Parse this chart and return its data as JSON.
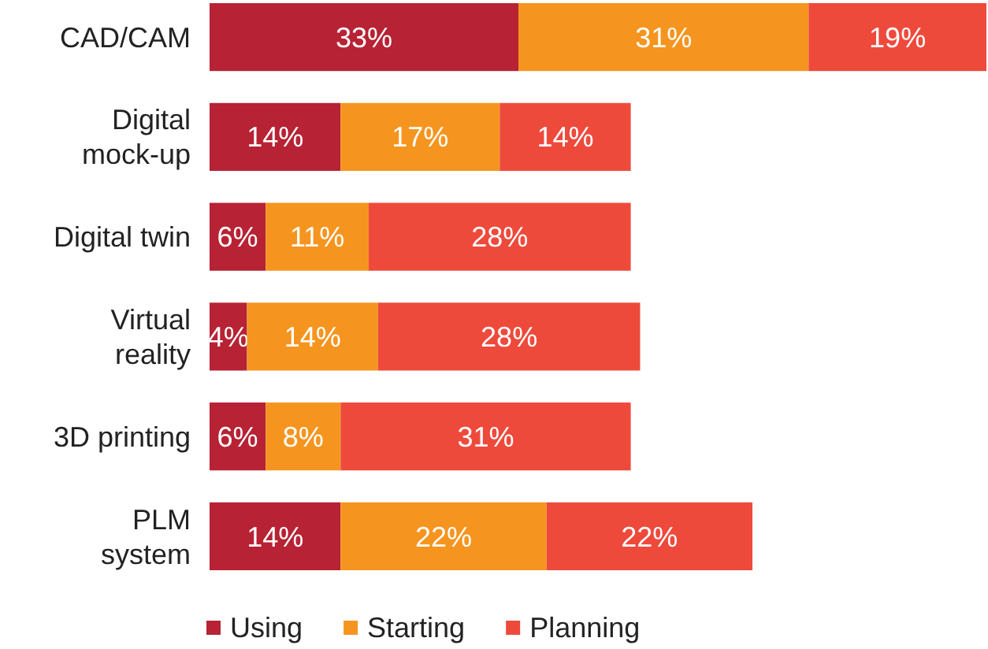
{
  "chart_data": {
    "type": "bar",
    "orientation": "horizontal",
    "stacked": true,
    "legend": "bottom",
    "categories": [
      "CAD/CAM",
      "Digital\nmock-up",
      "Digital twin",
      "Virtual\nreality",
      "3D printing",
      "PLM\nsystem"
    ],
    "series": [
      {
        "name": "Using",
        "color": "#b72234",
        "values": [
          33,
          14,
          6,
          4,
          6,
          14
        ],
        "value_labels": [
          "33%",
          "14%",
          "6%",
          "4%",
          "6%",
          "14%"
        ]
      },
      {
        "name": "Starting",
        "color": "#f5951f",
        "values": [
          31,
          17,
          11,
          14,
          8,
          22
        ],
        "value_labels": [
          "31%",
          "17%",
          "11%",
          "14%",
          "8%",
          "22%"
        ]
      },
      {
        "name": "Planning",
        "color": "#ee4a3c",
        "values": [
          19,
          14,
          28,
          28,
          31,
          22
        ],
        "value_labels": [
          "19%",
          "14%",
          "28%",
          "28%",
          "31%",
          "22%"
        ]
      }
    ]
  }
}
